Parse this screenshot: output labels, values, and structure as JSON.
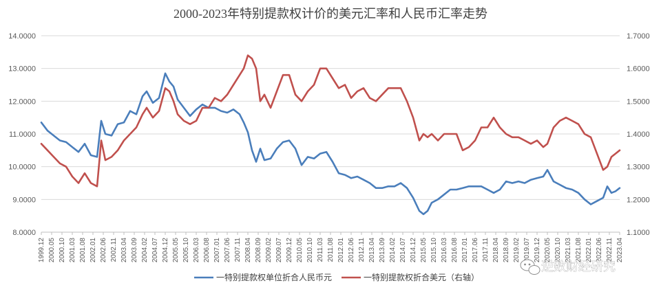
{
  "chart_data": {
    "type": "line",
    "title": "2000-2023年特别提款权计价的美元汇率和人民币汇率走势",
    "xlabel": "",
    "ylabel": "",
    "y_left": {
      "lim": [
        8.0,
        14.0
      ],
      "ticks": [
        "8.0000",
        "9.0000",
        "10.0000",
        "11.0000",
        "12.0000",
        "13.0000",
        "14.0000"
      ]
    },
    "y_right": {
      "lim": [
        1.1,
        1.7
      ],
      "ticks": [
        "1.1000",
        "1.2000",
        "1.3000",
        "1.4000",
        "1.5000",
        "1.6000",
        "1.7000"
      ]
    },
    "grid": true,
    "legend_position": "bottom",
    "x_tick_labels": [
      "1999.12",
      "2000.05",
      "2000.10",
      "2001.03",
      "2001.08",
      "2002.01",
      "2002.06",
      "2002.11",
      "2003.04",
      "2003.09",
      "2004.02",
      "2004.07",
      "2004.12",
      "2005.05",
      "2005.10",
      "2006.03",
      "2006.08",
      "2007.01",
      "2007.06",
      "2007.11",
      "2008.04",
      "2008.09",
      "2009.02",
      "2009.07",
      "2009.12",
      "2010.05",
      "2010.10",
      "2011.03",
      "2011.08",
      "2012.01",
      "2012.06",
      "2012.11",
      "2013.04",
      "2013.09",
      "2014.02",
      "2014.07",
      "2014.12",
      "2015.05",
      "2015.10",
      "2016.03",
      "2016.08",
      "2017.01",
      "2017.06",
      "2017.11",
      "2018.04",
      "2018.09",
      "2019.02",
      "2019.07",
      "2019.12",
      "2020.05",
      "2020.10",
      "2021.03",
      "2021.08",
      "2022.01",
      "2022.06",
      "2022.11",
      "2023.04"
    ],
    "series": [
      {
        "name": "一特别提款权单位折合人民币元",
        "axis": "left",
        "color": "#4a7ebb",
        "points": [
          [
            "1999.12",
            11.35
          ],
          [
            "2000.03",
            11.1
          ],
          [
            "2000.06",
            10.95
          ],
          [
            "2000.09",
            10.8
          ],
          [
            "2000.12",
            10.75
          ],
          [
            "2001.03",
            10.6
          ],
          [
            "2001.06",
            10.45
          ],
          [
            "2001.09",
            10.7
          ],
          [
            "2001.12",
            10.35
          ],
          [
            "2002.03",
            10.3
          ],
          [
            "2002.05",
            11.4
          ],
          [
            "2002.07",
            11.0
          ],
          [
            "2002.10",
            10.95
          ],
          [
            "2003.01",
            11.3
          ],
          [
            "2003.04",
            11.35
          ],
          [
            "2003.07",
            11.7
          ],
          [
            "2003.10",
            11.6
          ],
          [
            "2004.01",
            12.15
          ],
          [
            "2004.03",
            12.3
          ],
          [
            "2004.06",
            11.95
          ],
          [
            "2004.09",
            12.1
          ],
          [
            "2004.12",
            12.85
          ],
          [
            "2005.02",
            12.6
          ],
          [
            "2005.04",
            12.45
          ],
          [
            "2005.06",
            12.05
          ],
          [
            "2005.09",
            11.8
          ],
          [
            "2005.12",
            11.55
          ],
          [
            "2006.03",
            11.75
          ],
          [
            "2006.06",
            11.9
          ],
          [
            "2006.09",
            11.8
          ],
          [
            "2006.12",
            11.8
          ],
          [
            "2007.03",
            11.7
          ],
          [
            "2007.06",
            11.65
          ],
          [
            "2007.09",
            11.75
          ],
          [
            "2007.12",
            11.6
          ],
          [
            "2008.02",
            11.35
          ],
          [
            "2008.04",
            11.05
          ],
          [
            "2008.06",
            10.5
          ],
          [
            "2008.08",
            10.15
          ],
          [
            "2008.10",
            10.55
          ],
          [
            "2008.12",
            10.2
          ],
          [
            "2009.03",
            10.25
          ],
          [
            "2009.06",
            10.55
          ],
          [
            "2009.09",
            10.75
          ],
          [
            "2009.12",
            10.8
          ],
          [
            "2010.03",
            10.55
          ],
          [
            "2010.06",
            10.05
          ],
          [
            "2010.09",
            10.3
          ],
          [
            "2010.12",
            10.25
          ],
          [
            "2011.03",
            10.4
          ],
          [
            "2011.06",
            10.45
          ],
          [
            "2011.09",
            10.15
          ],
          [
            "2011.12",
            9.8
          ],
          [
            "2012.03",
            9.75
          ],
          [
            "2012.06",
            9.65
          ],
          [
            "2012.09",
            9.7
          ],
          [
            "2012.12",
            9.6
          ],
          [
            "2013.03",
            9.5
          ],
          [
            "2013.06",
            9.35
          ],
          [
            "2013.09",
            9.35
          ],
          [
            "2013.12",
            9.4
          ],
          [
            "2014.03",
            9.4
          ],
          [
            "2014.06",
            9.5
          ],
          [
            "2014.09",
            9.35
          ],
          [
            "2014.12",
            9.05
          ],
          [
            "2015.03",
            8.65
          ],
          [
            "2015.05",
            8.55
          ],
          [
            "2015.07",
            8.65
          ],
          [
            "2015.09",
            8.9
          ],
          [
            "2015.12",
            9.0
          ],
          [
            "2016.03",
            9.15
          ],
          [
            "2016.06",
            9.3
          ],
          [
            "2016.09",
            9.3
          ],
          [
            "2016.12",
            9.35
          ],
          [
            "2017.03",
            9.4
          ],
          [
            "2017.06",
            9.4
          ],
          [
            "2017.09",
            9.4
          ],
          [
            "2017.12",
            9.3
          ],
          [
            "2018.03",
            9.2
          ],
          [
            "2018.06",
            9.3
          ],
          [
            "2018.09",
            9.55
          ],
          [
            "2018.12",
            9.5
          ],
          [
            "2019.03",
            9.55
          ],
          [
            "2019.06",
            9.5
          ],
          [
            "2019.09",
            9.6
          ],
          [
            "2019.12",
            9.65
          ],
          [
            "2020.03",
            9.7
          ],
          [
            "2020.05",
            9.9
          ],
          [
            "2020.08",
            9.55
          ],
          [
            "2020.11",
            9.45
          ],
          [
            "2021.02",
            9.35
          ],
          [
            "2021.05",
            9.3
          ],
          [
            "2021.08",
            9.2
          ],
          [
            "2021.11",
            9.0
          ],
          [
            "2022.02",
            8.85
          ],
          [
            "2022.05",
            8.95
          ],
          [
            "2022.08",
            9.05
          ],
          [
            "2022.10",
            9.4
          ],
          [
            "2022.12",
            9.2
          ],
          [
            "2023.02",
            9.25
          ],
          [
            "2023.04",
            9.35
          ]
        ]
      },
      {
        "name": "一特别提款权折合美元（右轴）",
        "axis": "right",
        "color": "#c0504d",
        "points": [
          [
            "1999.12",
            1.37
          ],
          [
            "2000.03",
            1.35
          ],
          [
            "2000.06",
            1.33
          ],
          [
            "2000.09",
            1.31
          ],
          [
            "2000.12",
            1.3
          ],
          [
            "2001.03",
            1.27
          ],
          [
            "2001.06",
            1.25
          ],
          [
            "2001.09",
            1.28
          ],
          [
            "2001.12",
            1.25
          ],
          [
            "2002.03",
            1.24
          ],
          [
            "2002.05",
            1.38
          ],
          [
            "2002.07",
            1.32
          ],
          [
            "2002.10",
            1.33
          ],
          [
            "2003.01",
            1.35
          ],
          [
            "2003.04",
            1.38
          ],
          [
            "2003.07",
            1.4
          ],
          [
            "2003.10",
            1.42
          ],
          [
            "2004.01",
            1.46
          ],
          [
            "2004.03",
            1.48
          ],
          [
            "2004.06",
            1.45
          ],
          [
            "2004.09",
            1.47
          ],
          [
            "2004.12",
            1.54
          ],
          [
            "2005.02",
            1.53
          ],
          [
            "2005.04",
            1.5
          ],
          [
            "2005.06",
            1.46
          ],
          [
            "2005.09",
            1.44
          ],
          [
            "2005.12",
            1.43
          ],
          [
            "2006.03",
            1.44
          ],
          [
            "2006.06",
            1.48
          ],
          [
            "2006.09",
            1.48
          ],
          [
            "2006.12",
            1.51
          ],
          [
            "2007.03",
            1.5
          ],
          [
            "2007.06",
            1.52
          ],
          [
            "2007.09",
            1.55
          ],
          [
            "2007.12",
            1.58
          ],
          [
            "2008.02",
            1.6
          ],
          [
            "2008.04",
            1.64
          ],
          [
            "2008.06",
            1.63
          ],
          [
            "2008.08",
            1.6
          ],
          [
            "2008.10",
            1.5
          ],
          [
            "2008.12",
            1.52
          ],
          [
            "2009.03",
            1.48
          ],
          [
            "2009.06",
            1.53
          ],
          [
            "2009.09",
            1.58
          ],
          [
            "2009.12",
            1.58
          ],
          [
            "2010.03",
            1.52
          ],
          [
            "2010.06",
            1.5
          ],
          [
            "2010.09",
            1.53
          ],
          [
            "2010.12",
            1.55
          ],
          [
            "2011.03",
            1.6
          ],
          [
            "2011.06",
            1.6
          ],
          [
            "2011.09",
            1.57
          ],
          [
            "2011.12",
            1.54
          ],
          [
            "2012.03",
            1.55
          ],
          [
            "2012.06",
            1.51
          ],
          [
            "2012.09",
            1.53
          ],
          [
            "2012.12",
            1.54
          ],
          [
            "2013.03",
            1.51
          ],
          [
            "2013.06",
            1.5
          ],
          [
            "2013.09",
            1.52
          ],
          [
            "2013.12",
            1.54
          ],
          [
            "2014.03",
            1.54
          ],
          [
            "2014.06",
            1.54
          ],
          [
            "2014.09",
            1.5
          ],
          [
            "2014.12",
            1.45
          ],
          [
            "2015.03",
            1.38
          ],
          [
            "2015.05",
            1.4
          ],
          [
            "2015.07",
            1.39
          ],
          [
            "2015.09",
            1.4
          ],
          [
            "2015.12",
            1.38
          ],
          [
            "2016.03",
            1.4
          ],
          [
            "2016.06",
            1.4
          ],
          [
            "2016.09",
            1.4
          ],
          [
            "2016.12",
            1.35
          ],
          [
            "2017.03",
            1.36
          ],
          [
            "2017.06",
            1.38
          ],
          [
            "2017.09",
            1.42
          ],
          [
            "2017.12",
            1.42
          ],
          [
            "2018.03",
            1.45
          ],
          [
            "2018.06",
            1.42
          ],
          [
            "2018.09",
            1.4
          ],
          [
            "2018.12",
            1.39
          ],
          [
            "2019.03",
            1.39
          ],
          [
            "2019.06",
            1.38
          ],
          [
            "2019.09",
            1.37
          ],
          [
            "2019.12",
            1.38
          ],
          [
            "2020.03",
            1.36
          ],
          [
            "2020.05",
            1.37
          ],
          [
            "2020.08",
            1.42
          ],
          [
            "2020.11",
            1.44
          ],
          [
            "2021.02",
            1.45
          ],
          [
            "2021.05",
            1.44
          ],
          [
            "2021.08",
            1.43
          ],
          [
            "2021.11",
            1.4
          ],
          [
            "2022.02",
            1.39
          ],
          [
            "2022.05",
            1.34
          ],
          [
            "2022.08",
            1.29
          ],
          [
            "2022.10",
            1.3
          ],
          [
            "2022.12",
            1.33
          ],
          [
            "2023.02",
            1.34
          ],
          [
            "2023.04",
            1.35
          ]
        ]
      }
    ]
  },
  "watermark": {
    "text": "逆数财经研究",
    "icon": "wechat-icon"
  }
}
